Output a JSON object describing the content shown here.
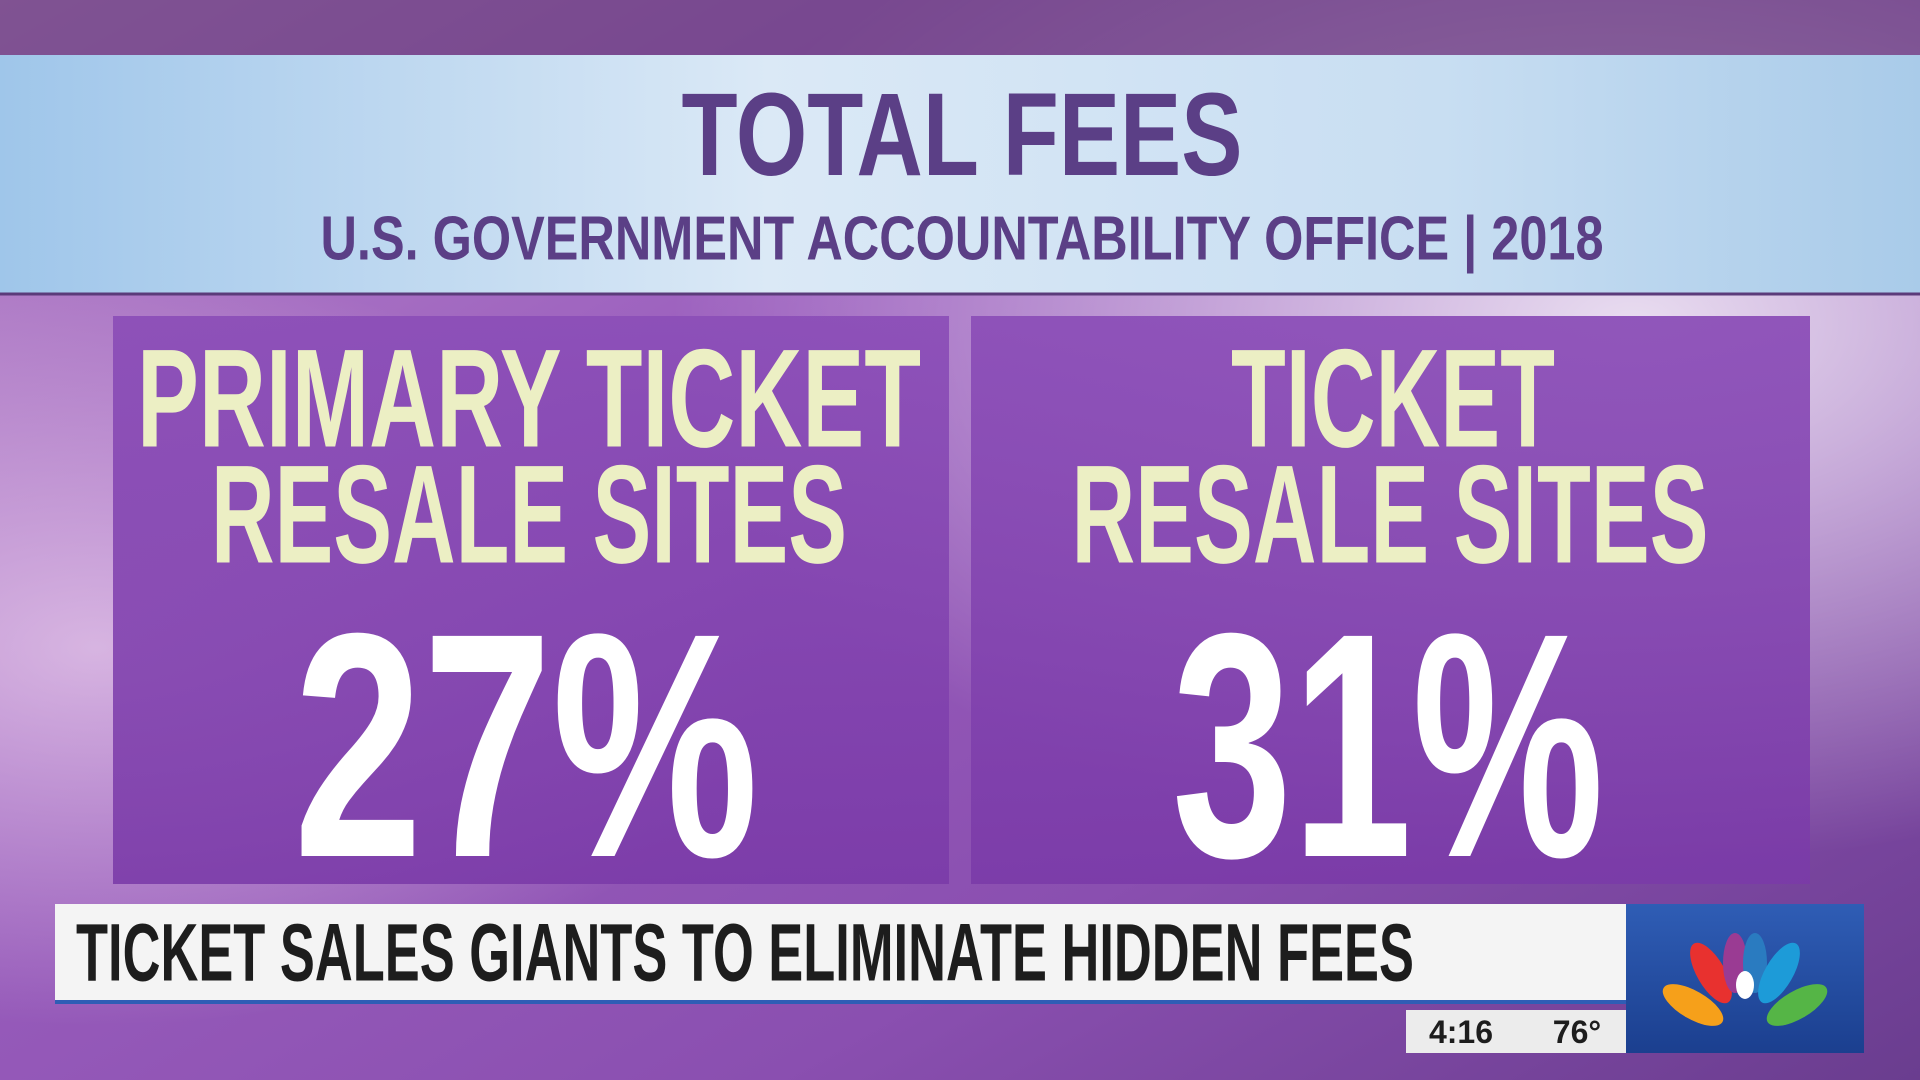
{
  "header": {
    "title": "TOTAL FEES",
    "subtitle": "U.S. GOVERNMENT ACCOUNTABILITY OFFICE | 2018"
  },
  "panels": [
    {
      "label_lines": [
        "PRIMARY TICKET",
        "RESALE SITES"
      ],
      "value": "27%"
    },
    {
      "label_lines": [
        "TICKET",
        "RESALE SITES"
      ],
      "value": "31%"
    }
  ],
  "lower_third": {
    "headline": "TICKET SALES GIANTS TO ELIMINATE HIDDEN FEES",
    "time": "4:16",
    "temperature": "76°"
  }
}
